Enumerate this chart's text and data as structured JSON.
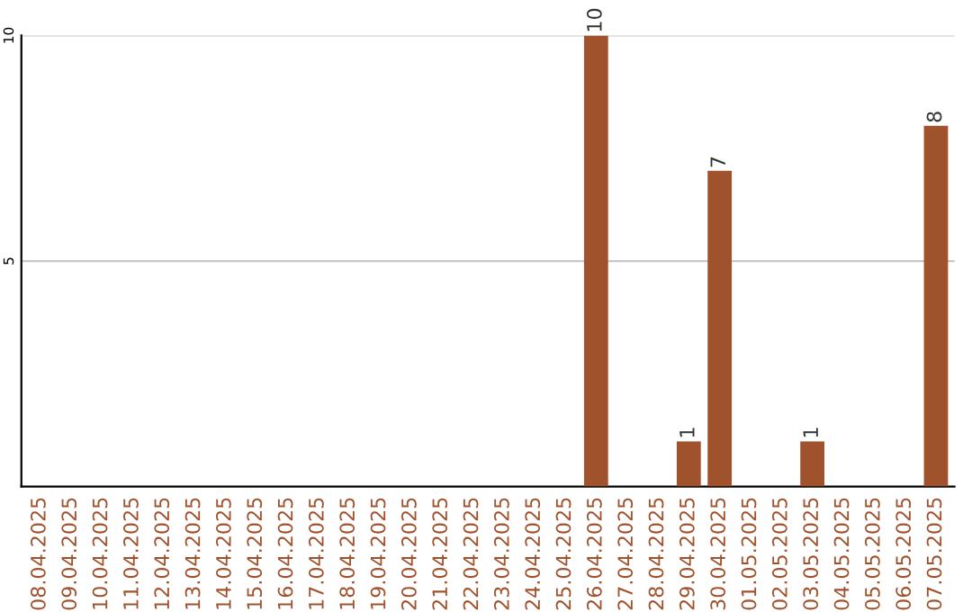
{
  "chart_data": {
    "type": "bar",
    "categories": [
      "08.04.2025",
      "09.04.2025",
      "10.04.2025",
      "11.04.2025",
      "12.04.2025",
      "13.04.2025",
      "14.04.2025",
      "15.04.2025",
      "16.04.2025",
      "17.04.2025",
      "18.04.2025",
      "19.04.2025",
      "20.04.2025",
      "21.04.2025",
      "22.04.2025",
      "23.04.2025",
      "24.04.2025",
      "25.04.2025",
      "26.04.2025",
      "27.04.2025",
      "28.04.2025",
      "29.04.2025",
      "30.04.2025",
      "01.05.2025",
      "02.05.2025",
      "03.05.2025",
      "04.05.2025",
      "05.05.2025",
      "06.05.2025",
      "07.05.2025"
    ],
    "values": [
      0,
      0,
      0,
      0,
      0,
      0,
      0,
      0,
      0,
      0,
      0,
      0,
      0,
      0,
      0,
      0,
      0,
      0,
      10,
      0,
      0,
      1,
      7,
      0,
      0,
      1,
      0,
      0,
      0,
      8
    ],
    "value_labels": [
      null,
      null,
      null,
      null,
      null,
      null,
      null,
      null,
      null,
      null,
      null,
      null,
      null,
      null,
      null,
      null,
      null,
      null,
      "10",
      null,
      null,
      "1",
      "7",
      null,
      null,
      "1",
      null,
      null,
      null,
      "8"
    ],
    "color": "#a0522d",
    "ylim": [
      0,
      10
    ],
    "yticks": [
      5,
      10
    ],
    "grid": "y"
  }
}
